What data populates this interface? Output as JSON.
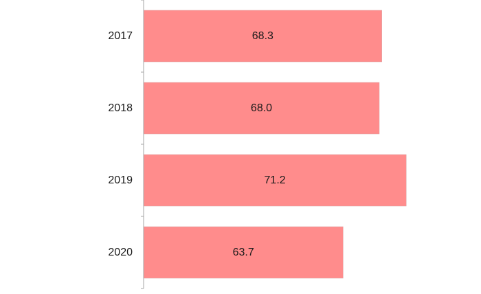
{
  "chart_data": {
    "type": "bar",
    "orientation": "horizontal",
    "categories": [
      "2017",
      "2018",
      "2019",
      "2020"
    ],
    "values": [
      68.3,
      68.0,
      71.2,
      63.7
    ],
    "data_labels": [
      "68.3",
      "68.0",
      "71.2",
      "63.7"
    ],
    "title": "",
    "xlabel": "",
    "ylabel": "",
    "xlim": [
      40,
      75
    ],
    "grid": false,
    "legend": "none",
    "bar_color": "#ff8c8c"
  }
}
